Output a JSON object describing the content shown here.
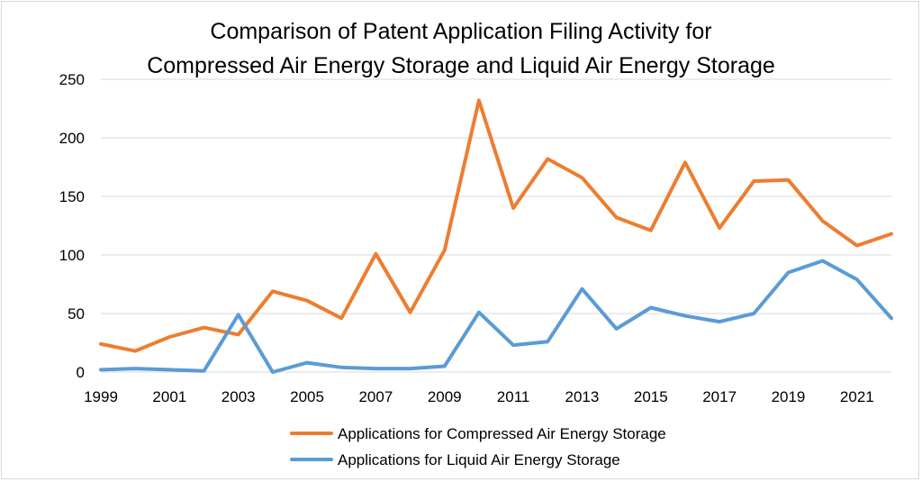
{
  "chart_data": {
    "type": "line",
    "title_line1": "Comparison of Patent Application Filing Activity for",
    "title_line2": "Compressed Air Energy Storage and Liquid Air Energy Storage",
    "xlabel": "",
    "ylabel": "",
    "x": [
      1999,
      2000,
      2001,
      2002,
      2003,
      2004,
      2005,
      2006,
      2007,
      2008,
      2009,
      2010,
      2011,
      2012,
      2013,
      2014,
      2015,
      2016,
      2017,
      2018,
      2019,
      2020,
      2021,
      2022
    ],
    "x_tick_labels": [
      "1999",
      "2001",
      "2003",
      "2005",
      "2007",
      "2009",
      "2011",
      "2013",
      "2015",
      "2017",
      "2019",
      "2021"
    ],
    "y_tick_labels": [
      "0",
      "50",
      "100",
      "150",
      "200",
      "250"
    ],
    "ylim": [
      0,
      250
    ],
    "grid": true,
    "legend_position": "bottom",
    "series": [
      {
        "name": "Applications for Compressed Air Energy Storage",
        "color": "#ed7d31",
        "values": [
          24,
          18,
          30,
          38,
          32,
          69,
          61,
          46,
          101,
          51,
          104,
          232,
          140,
          182,
          166,
          132,
          121,
          179,
          123,
          163,
          164,
          129,
          108,
          118
        ]
      },
      {
        "name": "Applications for Liquid Air Energy Storage",
        "color": "#5b9bd5",
        "values": [
          2,
          3,
          2,
          1,
          49,
          0,
          8,
          4,
          3,
          3,
          5,
          51,
          23,
          26,
          71,
          37,
          55,
          48,
          43,
          50,
          85,
          95,
          79,
          46
        ]
      }
    ]
  }
}
